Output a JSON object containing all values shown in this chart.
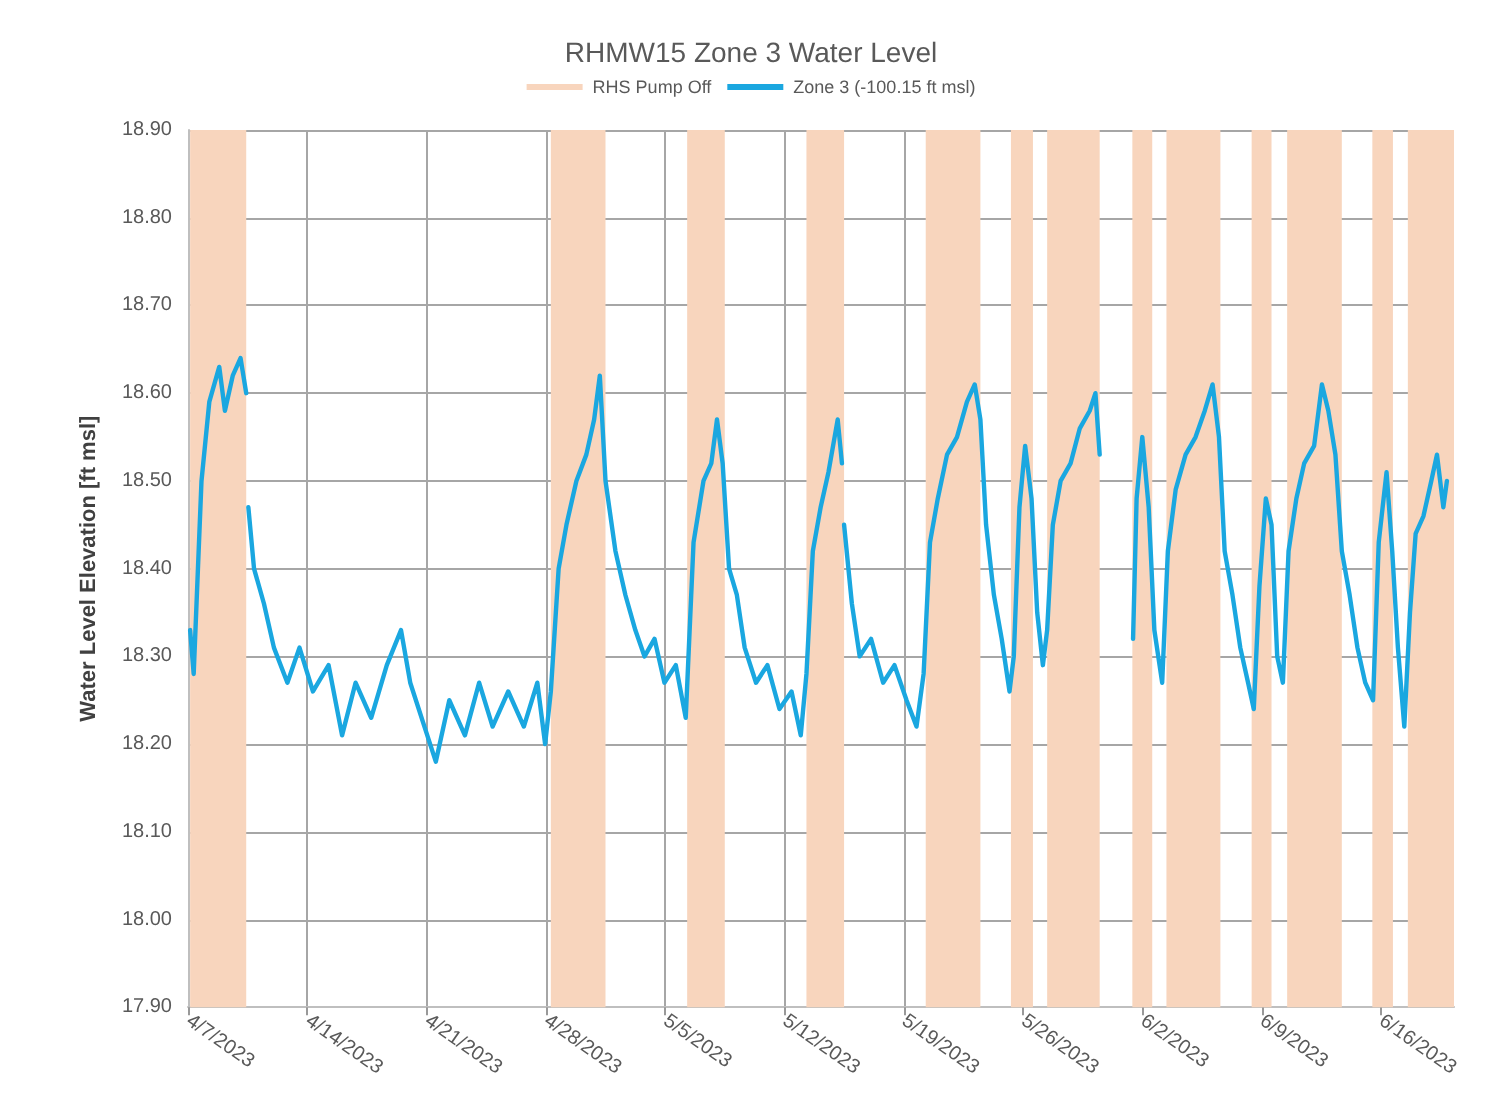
{
  "chart_data": {
    "type": "line",
    "title": "RHMW15 Zone 3 Water Level",
    "ylabel": "Water Level Elevation [ft msl]",
    "xlim": [
      "2023-04-07",
      "2023-06-20T07:00"
    ],
    "xticks": [
      {
        "value": "2023-04-07",
        "label": "4/7/2023"
      },
      {
        "value": "2023-04-14",
        "label": "4/14/2023"
      },
      {
        "value": "2023-04-21",
        "label": "4/21/2023"
      },
      {
        "value": "2023-04-28",
        "label": "4/28/2023"
      },
      {
        "value": "2023-05-05",
        "label": "5/5/2023"
      },
      {
        "value": "2023-05-12",
        "label": "5/12/2023"
      },
      {
        "value": "2023-05-19",
        "label": "5/19/2023"
      },
      {
        "value": "2023-05-26",
        "label": "5/26/2023"
      },
      {
        "value": "2023-06-02",
        "label": "6/2/2023"
      },
      {
        "value": "2023-06-09",
        "label": "6/9/2023"
      },
      {
        "value": "2023-06-16",
        "label": "6/16/2023"
      }
    ],
    "ylim": [
      17.9,
      18.9
    ],
    "yticks": [
      {
        "value": 17.9,
        "label": "17.90"
      },
      {
        "value": 18.0,
        "label": "18.00"
      },
      {
        "value": 18.1,
        "label": "18.10"
      },
      {
        "value": 18.2,
        "label": "18.20"
      },
      {
        "value": 18.3,
        "label": "18.30"
      },
      {
        "value": 18.4,
        "label": "18.40"
      },
      {
        "value": 18.5,
        "label": "18.50"
      },
      {
        "value": 18.6,
        "label": "18.60"
      },
      {
        "value": 18.7,
        "label": "18.70"
      },
      {
        "value": 18.8,
        "label": "18.80"
      },
      {
        "value": 18.9,
        "label": "18.90"
      }
    ],
    "grid": true,
    "legend": "top",
    "marker": "none",
    "line_style": "solid",
    "bands": [
      {
        "axis": "x",
        "from": "2023-04-07T03:00",
        "to": "2023-04-10T10:00",
        "label": "RHS Pump Off",
        "color": "#f8d5bd"
      },
      {
        "axis": "x",
        "from": "2023-04-28T07:00",
        "to": "2023-05-01T12:00",
        "color": "#f8d5bd"
      },
      {
        "axis": "x",
        "from": "2023-05-06T07:00",
        "to": "2023-05-08T12:00",
        "color": "#f8d5bd"
      },
      {
        "axis": "x",
        "from": "2023-05-13T07:00",
        "to": "2023-05-15T12:00",
        "color": "#f8d5bd"
      },
      {
        "axis": "x",
        "from": "2023-05-20T07:00",
        "to": "2023-05-23T12:00",
        "color": "#f8d5bd"
      },
      {
        "axis": "x",
        "from": "2023-05-25T07:00",
        "to": "2023-05-26T14:00",
        "color": "#f8d5bd"
      },
      {
        "axis": "x",
        "from": "2023-05-27T10:00",
        "to": "2023-05-30T12:00",
        "color": "#f8d5bd"
      },
      {
        "axis": "x",
        "from": "2023-06-01T10:00",
        "to": "2023-06-02T14:00",
        "color": "#f8d5bd"
      },
      {
        "axis": "x",
        "from": "2023-06-03T10:00",
        "to": "2023-06-06T14:00",
        "color": "#f8d5bd"
      },
      {
        "axis": "x",
        "from": "2023-06-08T10:00",
        "to": "2023-06-09T14:00",
        "color": "#f8d5bd"
      },
      {
        "axis": "x",
        "from": "2023-06-10T12:00",
        "to": "2023-06-13T17:00",
        "color": "#f8d5bd"
      },
      {
        "axis": "x",
        "from": "2023-06-15T12:00",
        "to": "2023-06-16T17:00",
        "color": "#f8d5bd"
      },
      {
        "axis": "x",
        "from": "2023-06-17T14:00",
        "to": "2023-06-20T07:00",
        "color": "#f8d5bd"
      }
    ],
    "x": [
      "2023-04-07T03:00",
      "2023-04-07T08:00",
      "2023-04-07T19:00",
      "2023-04-08T06:00",
      "2023-04-08T20:00",
      "2023-04-09T04:00",
      "2023-04-09T15:00",
      "2023-04-10T02:00",
      "2023-04-10T10:00",
      "2023-04-10T11:00",
      "2023-04-10T13:00",
      "2023-04-10T21:00",
      "2023-04-11T11:00",
      "2023-04-12T01:00",
      "2023-04-12T20:00",
      "2023-04-13T13:00",
      "2023-04-14T08:00",
      "2023-04-15T06:00",
      "2023-04-16T01:00",
      "2023-04-16T20:00",
      "2023-04-17T18:00",
      "2023-04-18T16:00",
      "2023-04-19T12:00",
      "2023-04-20T01:00",
      "2023-04-20T21:00",
      "2023-04-21T13:00",
      "2023-04-22T08:00",
      "2023-04-23T06:00",
      "2023-04-24T02:00",
      "2023-04-24T21:00",
      "2023-04-25T19:00",
      "2023-04-26T17:00",
      "2023-04-27T12:00",
      "2023-04-27T23:00",
      "2023-04-28T07:00",
      "2023-04-28T18:00",
      "2023-04-29T05:00",
      "2023-04-29T19:00",
      "2023-04-30T09:00",
      "2023-04-30T20:00",
      "2023-05-01T04:00",
      "2023-05-01T12:00",
      "2023-05-02T02:00",
      "2023-05-02T16:00",
      "2023-05-03T06:00",
      "2023-05-03T19:00",
      "2023-05-04T09:00",
      "2023-05-04T23:00",
      "2023-05-05T15:00",
      "2023-05-06T05:00",
      "2023-05-06T16:00",
      "2023-05-07T06:00",
      "2023-05-07T17:00",
      "2023-05-08T01:00",
      "2023-05-08T09:00",
      "2023-05-08T18:00",
      "2023-05-09T05:00",
      "2023-05-09T16:00",
      "2023-05-10T08:00",
      "2023-05-11T00:00",
      "2023-05-11T17:00",
      "2023-05-12T10:00",
      "2023-05-12T23:00",
      "2023-05-13T07:00",
      "2023-05-13T16:00",
      "2023-05-14T03:00",
      "2023-05-14T14:00",
      "2023-05-15T03:00",
      "2023-05-15T09:00",
      "2023-05-15T10:00",
      "2023-05-15T12:00",
      "2023-05-15T23:00",
      "2023-05-16T10:00",
      "2023-05-17T02:00",
      "2023-05-17T19:00",
      "2023-05-18T11:00",
      "2023-05-19T04:00",
      "2023-05-19T18:00",
      "2023-05-20T04:00",
      "2023-05-20T13:00",
      "2023-05-21T00:00",
      "2023-05-21T13:00",
      "2023-05-22T03:00",
      "2023-05-22T17:00",
      "2023-05-23T04:00",
      "2023-05-23T12:00",
      "2023-05-23T20:00",
      "2023-05-24T07:00",
      "2023-05-24T18:00",
      "2023-05-25T05:00",
      "2023-05-25T11:00",
      "2023-05-25T19:00",
      "2023-05-26T03:00",
      "2023-05-26T12:00",
      "2023-05-26T20:00",
      "2023-05-27T04:00",
      "2023-05-27T10:00",
      "2023-05-27T18:00",
      "2023-05-28T05:00",
      "2023-05-28T19:00",
      "2023-05-29T08:00",
      "2023-05-29T22:00",
      "2023-05-30T06:00",
      "2023-05-30T12:00",
      "2023-05-31T00:00",
      "2023-06-01T11:00",
      "2023-06-01T16:00",
      "2023-06-02T00:00",
      "2023-06-02T09:00",
      "2023-06-02T17:00",
      "2023-06-03T04:00",
      "2023-06-03T12:00",
      "2023-06-03T23:00",
      "2023-06-04T13:00",
      "2023-06-05T03:00",
      "2023-06-05T16:00",
      "2023-06-06T03:00",
      "2023-06-06T12:00",
      "2023-06-06T20:00",
      "2023-06-07T07:00",
      "2023-06-07T18:00",
      "2023-06-08T05:00",
      "2023-06-08T13:00",
      "2023-06-08T21:00",
      "2023-06-09T06:00",
      "2023-06-09T14:00",
      "2023-06-09T22:00",
      "2023-06-10T06:00",
      "2023-06-10T14:00",
      "2023-06-11T01:00",
      "2023-06-11T12:00",
      "2023-06-12T02:00",
      "2023-06-12T13:00",
      "2023-06-12T22:00",
      "2023-06-13T08:00",
      "2023-06-13T17:00",
      "2023-06-14T04:00",
      "2023-06-14T15:00",
      "2023-06-15T02:00",
      "2023-06-15T13:00",
      "2023-06-15T21:00",
      "2023-06-16T08:00",
      "2023-06-16T16:00",
      "2023-06-17T00:00",
      "2023-06-17T09:00",
      "2023-06-17T17:00",
      "2023-06-18T01:00",
      "2023-06-18T12:00",
      "2023-06-18T23:00",
      "2023-06-19T07:00",
      "2023-06-19T16:00",
      "2023-06-19T21:00"
    ],
    "series": [
      {
        "name": "Zone 3 (-100.15 ft msl)",
        "color": "#1aa7e0",
        "values": [
          18.33,
          18.28,
          18.5,
          18.59,
          18.63,
          18.58,
          18.62,
          18.64,
          18.6,
          null,
          18.47,
          18.4,
          18.36,
          18.31,
          18.27,
          18.31,
          18.26,
          18.29,
          18.21,
          18.27,
          18.23,
          18.29,
          18.33,
          18.27,
          18.22,
          18.18,
          18.25,
          18.21,
          18.27,
          18.22,
          18.26,
          18.22,
          18.27,
          18.2,
          18.26,
          18.4,
          18.45,
          18.5,
          18.53,
          18.57,
          18.62,
          18.5,
          18.42,
          18.37,
          18.33,
          18.3,
          18.32,
          18.27,
          18.29,
          18.23,
          18.43,
          18.5,
          18.52,
          18.57,
          18.52,
          18.4,
          18.37,
          18.31,
          18.27,
          18.29,
          18.24,
          18.26,
          18.21,
          18.28,
          18.42,
          18.47,
          18.51,
          18.57,
          18.52,
          null,
          18.45,
          18.36,
          18.3,
          18.32,
          18.27,
          18.29,
          18.25,
          18.22,
          18.28,
          18.43,
          18.48,
          18.53,
          18.55,
          18.59,
          18.61,
          18.57,
          18.45,
          18.37,
          18.32,
          18.26,
          18.3,
          18.47,
          18.54,
          18.48,
          18.35,
          18.29,
          18.33,
          18.45,
          18.5,
          18.52,
          18.56,
          18.58,
          18.6,
          18.53,
          null,
          18.32,
          18.48,
          18.55,
          18.47,
          18.33,
          18.27,
          18.42,
          18.49,
          18.53,
          18.55,
          18.58,
          18.61,
          18.55,
          18.42,
          18.37,
          18.31,
          18.27,
          18.24,
          18.38,
          18.48,
          18.45,
          18.3,
          18.27,
          18.42,
          18.48,
          18.52,
          18.54,
          18.61,
          18.58,
          18.53,
          18.42,
          18.37,
          18.31,
          18.27,
          18.25,
          18.43,
          18.51,
          18.42,
          18.31,
          18.22,
          18.35,
          18.44,
          18.46,
          18.5,
          18.53,
          18.47,
          18.5
        ]
      }
    ]
  }
}
